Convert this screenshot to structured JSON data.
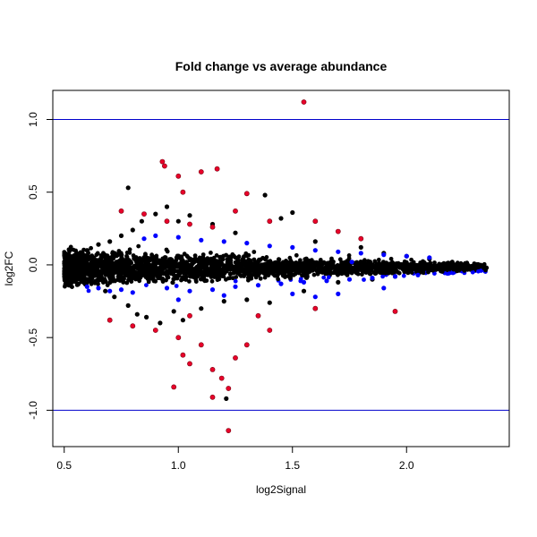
{
  "chart_data": {
    "type": "scatter",
    "title": "Fold change vs average abundance",
    "xlabel": "log2Signal",
    "ylabel": "log2FC",
    "xlim": [
      0.45,
      2.45
    ],
    "ylim": [
      -1.25,
      1.2
    ],
    "x_ticks": [
      "0.5",
      "1.0",
      "1.5",
      "2.0"
    ],
    "x_tick_values": [
      0.5,
      1.0,
      1.5,
      2.0
    ],
    "y_ticks": [
      "-1.0",
      "-0.5",
      "0.0",
      "0.5",
      "1.0"
    ],
    "y_tick_values": [
      -1.0,
      -0.5,
      0.0,
      0.5,
      1.0
    ],
    "reference_lines": [
      {
        "y": 1.0,
        "color": "#0000cc"
      },
      {
        "y": -1.0,
        "color": "#0000cc"
      }
    ],
    "colors": {
      "not_significant": "#000000",
      "significant_small_fc": "#0000ff",
      "significant_large_fc": "#e8002a"
    },
    "grid": false,
    "legend": "none",
    "series": [
      {
        "color": "#000000",
        "points": [
          [
            0.52,
            0.02
          ],
          [
            0.55,
            -0.06
          ],
          [
            0.58,
            0.08
          ],
          [
            0.6,
            0.1
          ],
          [
            0.62,
            -0.12
          ],
          [
            0.65,
            0.14
          ],
          [
            0.68,
            -0.18
          ],
          [
            0.7,
            0.16
          ],
          [
            0.72,
            -0.22
          ],
          [
            0.75,
            0.2
          ],
          [
            0.78,
            -0.28
          ],
          [
            0.78,
            0.53
          ],
          [
            0.8,
            0.24
          ],
          [
            0.82,
            -0.34
          ],
          [
            0.84,
            0.3
          ],
          [
            0.86,
            -0.36
          ],
          [
            0.9,
            0.35
          ],
          [
            0.92,
            -0.4
          ],
          [
            0.95,
            0.4
          ],
          [
            0.98,
            -0.32
          ],
          [
            1.0,
            0.3
          ],
          [
            1.02,
            -0.38
          ],
          [
            1.05,
            0.34
          ],
          [
            1.1,
            -0.3
          ],
          [
            1.15,
            0.28
          ],
          [
            1.2,
            -0.25
          ],
          [
            1.21,
            -0.92
          ],
          [
            1.25,
            0.22
          ],
          [
            1.3,
            -0.24
          ],
          [
            1.38,
            0.48
          ],
          [
            1.4,
            -0.26
          ],
          [
            1.45,
            0.32
          ],
          [
            1.5,
            0.36
          ],
          [
            1.55,
            -0.18
          ],
          [
            1.6,
            0.16
          ],
          [
            1.7,
            -0.12
          ],
          [
            1.8,
            0.12
          ],
          [
            1.9,
            0.08
          ],
          [
            2.0,
            0.06
          ],
          [
            2.1,
            0.04
          ],
          [
            2.2,
            0.02
          ],
          [
            2.3,
            -0.01
          ],
          [
            2.35,
            -0.02
          ],
          [
            2.25,
            0.0
          ],
          [
            2.15,
            -0.04
          ],
          [
            2.05,
            -0.06
          ],
          [
            1.95,
            -0.08
          ],
          [
            1.85,
            -0.1
          ]
        ]
      },
      {
        "color": "#0000ff",
        "points": [
          [
            0.6,
            -0.15
          ],
          [
            0.65,
            -0.16
          ],
          [
            0.7,
            -0.18
          ],
          [
            0.75,
            -0.17
          ],
          [
            0.8,
            -0.19
          ],
          [
            0.85,
            0.18
          ],
          [
            0.9,
            0.2
          ],
          [
            0.95,
            -0.16
          ],
          [
            1.0,
            0.19
          ],
          [
            1.05,
            -0.18
          ],
          [
            1.1,
            0.17
          ],
          [
            1.15,
            -0.17
          ],
          [
            1.2,
            0.16
          ],
          [
            1.25,
            -0.15
          ],
          [
            1.3,
            0.15
          ],
          [
            1.35,
            -0.14
          ],
          [
            1.4,
            0.13
          ],
          [
            1.45,
            -0.13
          ],
          [
            1.5,
            0.12
          ],
          [
            1.55,
            -0.12
          ],
          [
            1.6,
            0.1
          ],
          [
            1.65,
            -0.11
          ],
          [
            1.7,
            0.09
          ],
          [
            1.75,
            -0.1
          ],
          [
            1.8,
            0.08
          ],
          [
            1.85,
            -0.09
          ],
          [
            1.9,
            0.07
          ],
          [
            1.95,
            -0.08
          ],
          [
            2.0,
            0.06
          ],
          [
            2.05,
            -0.07
          ],
          [
            2.1,
            0.05
          ],
          [
            1.76,
            0.02
          ],
          [
            1.5,
            -0.2
          ],
          [
            1.6,
            -0.22
          ],
          [
            1.7,
            -0.2
          ],
          [
            1.9,
            -0.16
          ],
          [
            1.2,
            -0.21
          ],
          [
            1.0,
            -0.24
          ]
        ]
      },
      {
        "color": "#e8002a",
        "points": [
          [
            0.93,
            0.71
          ],
          [
            0.94,
            0.68
          ],
          [
            1.0,
            0.61
          ],
          [
            1.1,
            0.64
          ],
          [
            1.17,
            0.66
          ],
          [
            1.02,
            0.5
          ],
          [
            1.3,
            0.49
          ],
          [
            1.55,
            1.12
          ],
          [
            0.75,
            0.37
          ],
          [
            0.85,
            0.35
          ],
          [
            0.95,
            0.3
          ],
          [
            1.05,
            0.28
          ],
          [
            1.15,
            0.26
          ],
          [
            1.25,
            0.37
          ],
          [
            1.4,
            0.3
          ],
          [
            1.6,
            0.3
          ],
          [
            1.7,
            0.23
          ],
          [
            1.8,
            0.18
          ],
          [
            0.7,
            -0.38
          ],
          [
            0.8,
            -0.42
          ],
          [
            0.9,
            -0.45
          ],
          [
            1.0,
            -0.5
          ],
          [
            1.02,
            -0.62
          ],
          [
            1.05,
            -0.68
          ],
          [
            1.1,
            -0.55
          ],
          [
            1.15,
            -0.72
          ],
          [
            1.19,
            -0.78
          ],
          [
            1.22,
            -0.85
          ],
          [
            1.25,
            -0.64
          ],
          [
            1.3,
            -0.55
          ],
          [
            1.4,
            -0.45
          ],
          [
            1.6,
            -0.3
          ],
          [
            1.95,
            -0.32
          ],
          [
            0.98,
            -0.84
          ],
          [
            1.15,
            -0.91
          ],
          [
            1.22,
            -1.14
          ],
          [
            1.05,
            -0.35
          ],
          [
            1.35,
            -0.35
          ]
        ]
      }
    ]
  }
}
